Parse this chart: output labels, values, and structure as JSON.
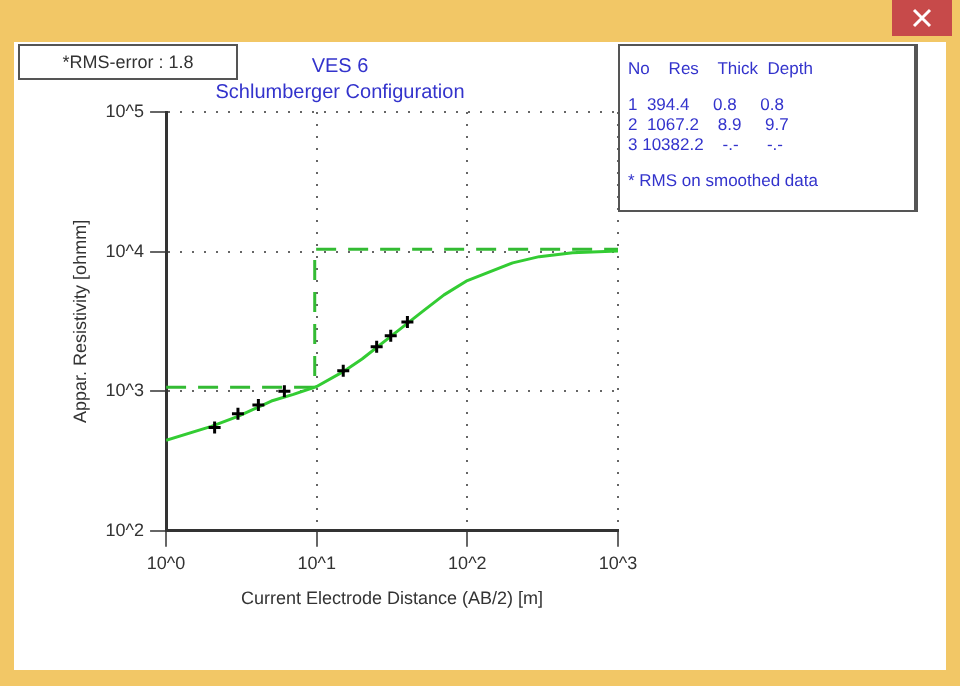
{
  "chart_data": {
    "type": "line",
    "title": "VES 6",
    "subtitle": "Schlumberger Configuration",
    "xlabel": "Current Electrode Distance (AB/2) [m]",
    "ylabel": "Appar. Resistivity [ohmm]",
    "log": "xy",
    "grid": true,
    "xlim": [
      1,
      1000
    ],
    "xticks": [
      {
        "value": 1,
        "label": "10^0"
      },
      {
        "value": 10,
        "label": "10^1"
      },
      {
        "value": 100,
        "label": "10^2"
      },
      {
        "value": 1000,
        "label": "10^3"
      }
    ],
    "ylim": [
      100,
      100000
    ],
    "yticks": [
      {
        "value": 100,
        "label": "10^2"
      },
      {
        "value": 1000,
        "label": "10^3"
      },
      {
        "value": 10000,
        "label": "10^4"
      },
      {
        "value": 100000,
        "label": "10^5"
      }
    ],
    "series": [
      {
        "type": "scatter",
        "color": "#000000",
        "marker": "cross",
        "x": [
          2.1,
          3.0,
          4.1,
          6.1,
          15,
          25,
          31,
          40
        ],
        "values": [
          550,
          690,
          795,
          1000,
          1400,
          2080,
          2500,
          3130
        ]
      },
      {
        "type": "line",
        "color": "#33cc33",
        "line_style": "solid",
        "x": [
          1,
          2,
          3,
          5,
          7,
          10,
          15,
          20,
          30,
          50,
          70,
          100,
          200,
          300,
          500,
          1000
        ],
        "values": [
          445,
          560,
          660,
          850,
          950,
          1080,
          1380,
          1700,
          2400,
          3700,
          4900,
          6200,
          8300,
          9200,
          9800,
          10100
        ]
      },
      {
        "type": "line",
        "color": "#33bb33",
        "line_style": "dashed",
        "x": [
          1,
          9.7,
          9.7,
          1000
        ],
        "values": [
          1067.2,
          1067.2,
          10382.2,
          10382.2
        ]
      }
    ],
    "annotations": [
      "*RMS-error :  1.8",
      "No    Res    Thick  Depth",
      "1  394.4     0.8     0.8",
      "2  1067.2    8.9     9.7",
      "3 10382.2    -.-      -.-",
      "* RMS on smoothed data"
    ]
  }
}
